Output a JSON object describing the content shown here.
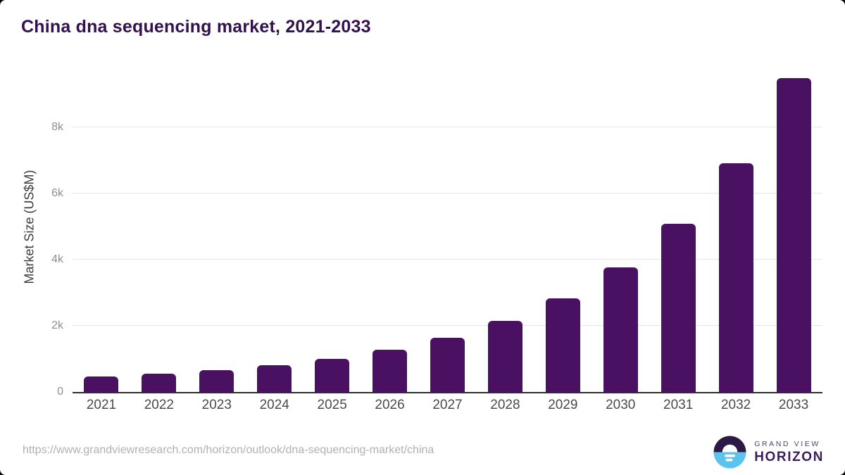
{
  "chart_data": {
    "type": "bar",
    "title": "China dna sequencing market, 2021-2033",
    "categories": [
      "2021",
      "2022",
      "2023",
      "2024",
      "2025",
      "2026",
      "2027",
      "2028",
      "2029",
      "2030",
      "2031",
      "2032",
      "2033"
    ],
    "values": [
      460,
      545,
      650,
      815,
      1010,
      1285,
      1630,
      2140,
      2825,
      3765,
      5085,
      6915,
      9500
    ],
    "xlabel": "",
    "ylabel": "Market Size (US$M)",
    "ylim": [
      0,
      10000
    ],
    "yticks": [
      {
        "value": 0,
        "label": "0"
      },
      {
        "value": 2000,
        "label": "2k"
      },
      {
        "value": 4000,
        "label": "4k"
      },
      {
        "value": 6000,
        "label": "6k"
      },
      {
        "value": 8000,
        "label": "8k"
      }
    ],
    "grid": true,
    "legend_position": "none",
    "bar_color": "#4a1061"
  },
  "colors": {
    "title": "#33114e",
    "bar": "#4a1061",
    "axis_line": "#2d2d2d",
    "gridline": "#e5e5e5",
    "y_tick_label": "#8e8e8e",
    "x_tick_label": "#4a4a4a",
    "url_text": "#b1b1b1",
    "logo_dark": "#2c1946",
    "logo_blue": "#5bc3ee"
  },
  "footer": {
    "source_url": "https://www.grandviewresearch.com/horizon/outlook/dna-sequencing-market/china",
    "logo": {
      "line1": "GRAND VIEW",
      "line2": "HORIZON"
    }
  }
}
